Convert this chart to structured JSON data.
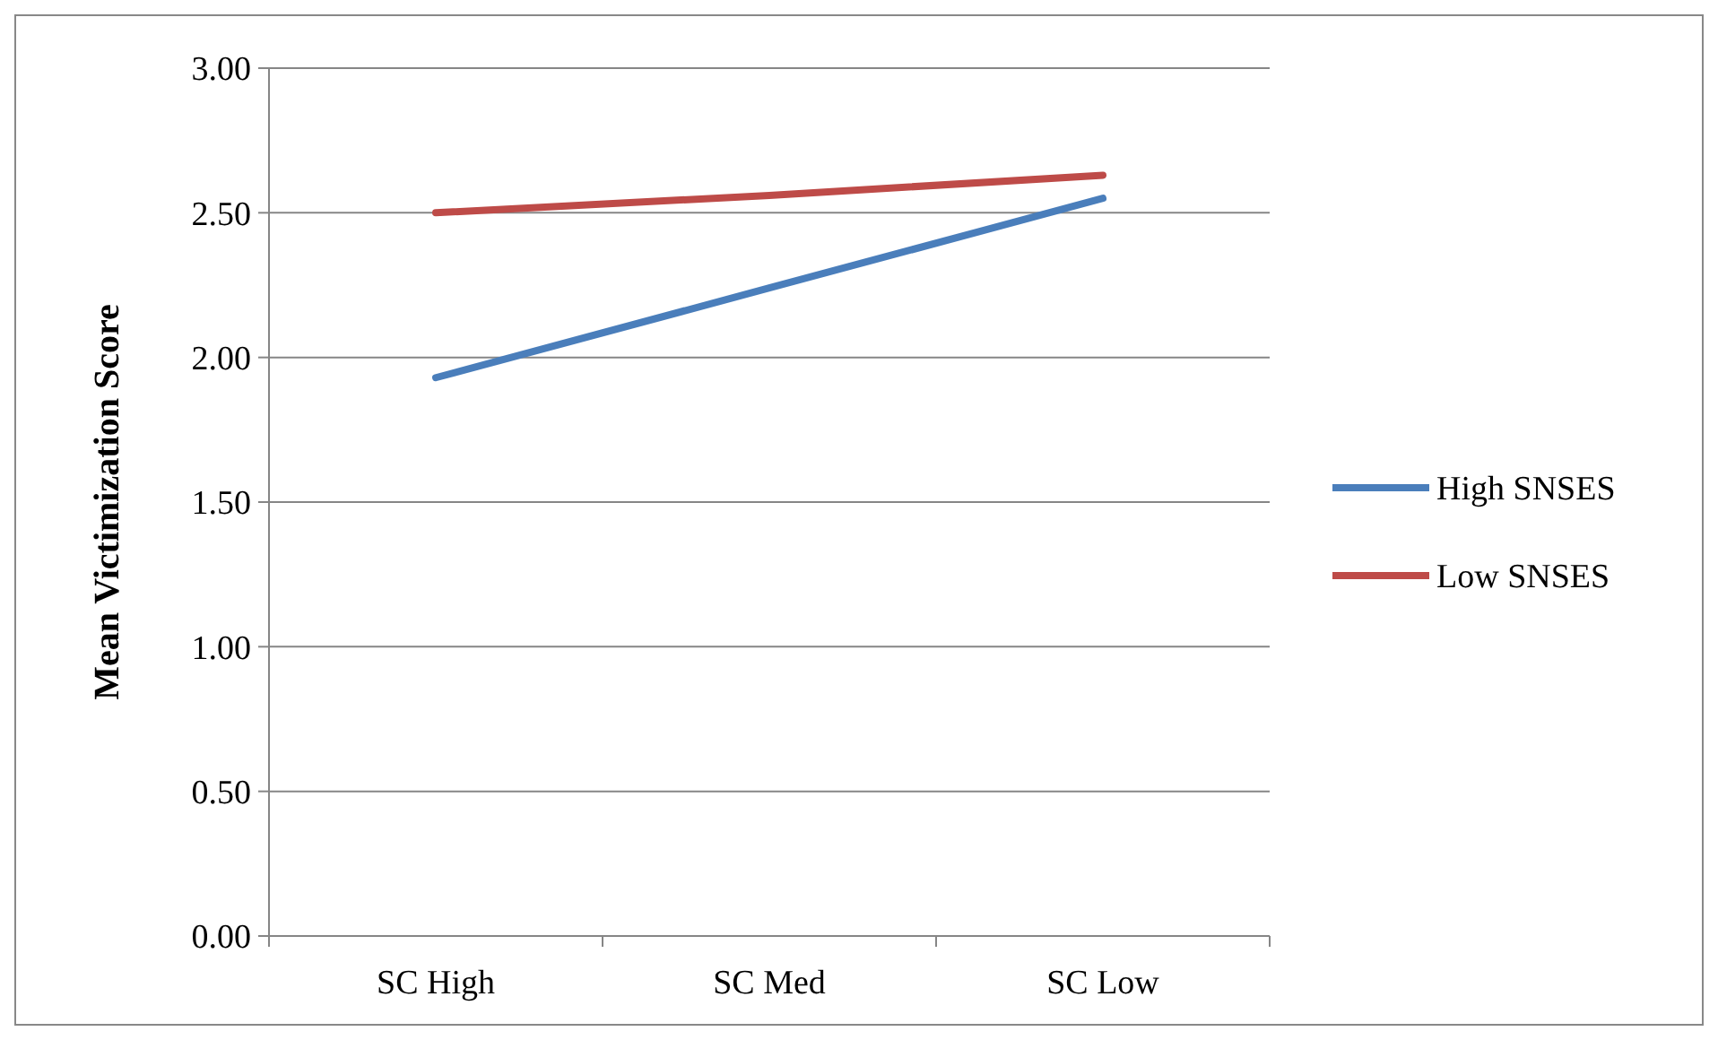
{
  "chart_data": {
    "type": "line",
    "ylabel": "Mean Victimization Score",
    "categories": [
      "SC High",
      "SC Med",
      "SC Low"
    ],
    "series": [
      {
        "name": "High SNSES",
        "color": "#4a7ebb",
        "values": [
          1.93,
          2.24,
          2.55
        ]
      },
      {
        "name": "Low SNSES",
        "color": "#be4b48",
        "values": [
          2.5,
          2.56,
          2.63
        ]
      }
    ],
    "ylim": [
      0,
      3
    ],
    "yticks": [
      {
        "value": 0,
        "label": "0.00"
      },
      {
        "value": 0.5,
        "label": "0.50"
      },
      {
        "value": 1,
        "label": "1.00"
      },
      {
        "value": 1.5,
        "label": "1.50"
      },
      {
        "value": 2,
        "label": "2.00"
      },
      {
        "value": 2.5,
        "label": "2.50"
      },
      {
        "value": 3,
        "label": "3.00"
      }
    ],
    "grid": "y",
    "legend": "right",
    "marker": "none",
    "line_style": "solid"
  }
}
